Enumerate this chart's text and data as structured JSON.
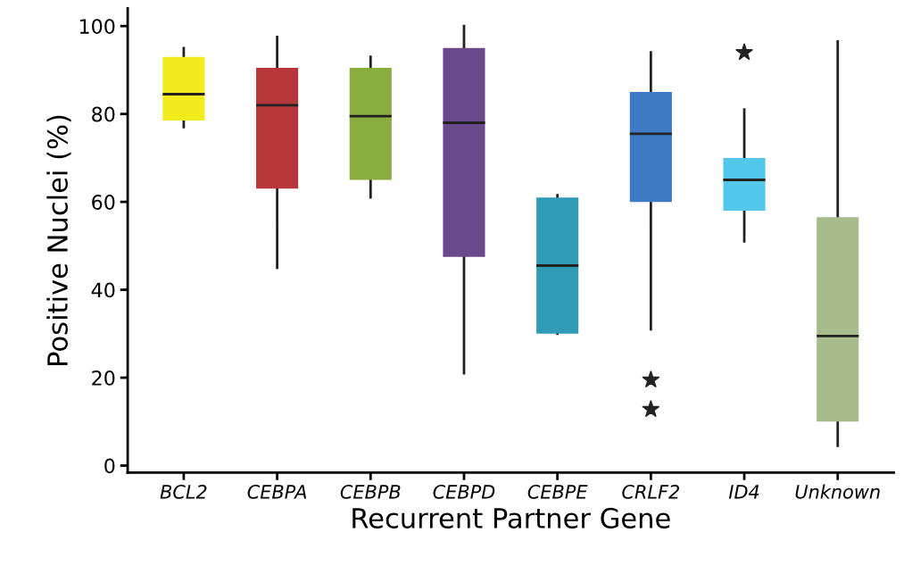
{
  "chart_data": {
    "type": "box",
    "xlabel": "Recurrent Partner Gene",
    "ylabel": "Positive Nuclei (%)",
    "categories": [
      "BCL2",
      "CEBPA",
      "CEBPB",
      "CEBPD",
      "CEBPE",
      "CRLF2",
      "ID4",
      "Unknown"
    ],
    "colors": [
      "#f2ec1e",
      "#b5373a",
      "#8aad3f",
      "#6a4a8c",
      "#2f9bb5",
      "#3e7bc4",
      "#53c8ea",
      "#a8bb8d"
    ],
    "boxes": [
      {
        "low": 77,
        "q1": 78.5,
        "median": 84.5,
        "q3": 93,
        "high": 95
      },
      {
        "low": 45,
        "q1": 63,
        "median": 82,
        "q3": 90.5,
        "high": 97.5
      },
      {
        "low": 61,
        "q1": 65,
        "median": 79.5,
        "q3": 90.5,
        "high": 93
      },
      {
        "low": 21,
        "q1": 47.5,
        "median": 78,
        "q3": 95,
        "high": 100
      },
      {
        "low": 30,
        "q1": 30,
        "median": 45.5,
        "q3": 61,
        "high": 61.5
      },
      {
        "low": 31,
        "q1": 60,
        "median": 75.5,
        "q3": 85,
        "high": 94,
        "outliers": [
          19.5,
          12.8
        ]
      },
      {
        "low": 51,
        "q1": 58,
        "median": 65,
        "q3": 70,
        "high": 81,
        "outliers": [
          94
        ]
      },
      {
        "low": 4.5,
        "q1": 10,
        "median": 29.5,
        "q3": 56.5,
        "high": 96.5
      }
    ],
    "ylim": [
      -1.6,
      104
    ],
    "yticks": [
      0,
      20,
      40,
      60,
      80,
      100
    ],
    "grid": false,
    "marker": "star"
  }
}
